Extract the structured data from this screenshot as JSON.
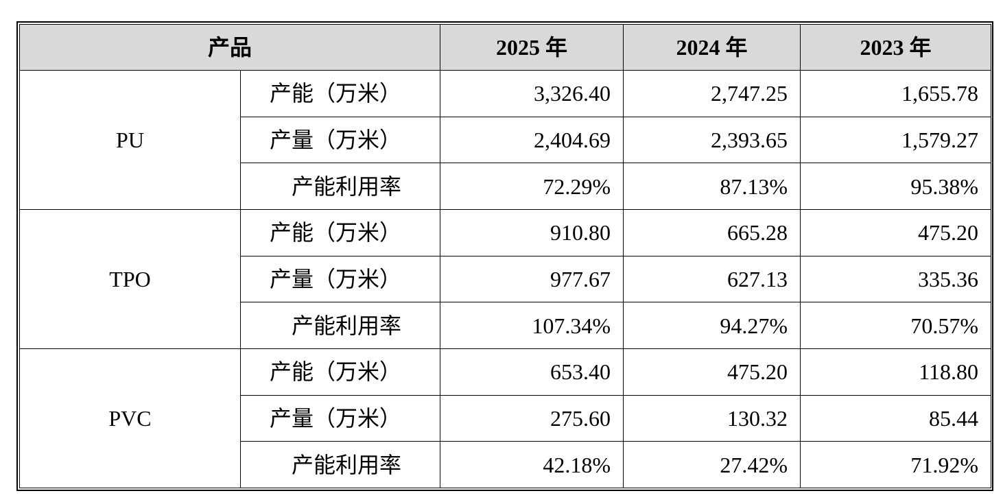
{
  "table": {
    "header": {
      "product": "产品",
      "years": [
        "2025 年",
        "2024 年",
        "2023 年"
      ]
    },
    "groups": [
      {
        "name": "PU",
        "rows": [
          {
            "metric": "产能（万米）",
            "values": [
              "3,326.40",
              "2,747.25",
              "1,655.78"
            ]
          },
          {
            "metric": "产量（万米）",
            "values": [
              "2,404.69",
              "2,393.65",
              "1,579.27"
            ]
          },
          {
            "metric": "产能利用率",
            "values": [
              "72.29%",
              "87.13%",
              "95.38%"
            ]
          }
        ]
      },
      {
        "name": "TPO",
        "rows": [
          {
            "metric": "产能（万米）",
            "values": [
              "910.80",
              "665.28",
              "475.20"
            ]
          },
          {
            "metric": "产量（万米）",
            "values": [
              "977.67",
              "627.13",
              "335.36"
            ]
          },
          {
            "metric": "产能利用率",
            "values": [
              "107.34%",
              "94.27%",
              "70.57%"
            ]
          }
        ]
      },
      {
        "name": "PVC",
        "rows": [
          {
            "metric": "产能（万米）",
            "values": [
              "653.40",
              "475.20",
              "118.80"
            ]
          },
          {
            "metric": "产量（万米）",
            "values": [
              "275.60",
              "130.32",
              "85.44"
            ]
          },
          {
            "metric": "产能利用率",
            "values": [
              "42.18%",
              "27.42%",
              "71.92%"
            ]
          }
        ]
      }
    ]
  }
}
